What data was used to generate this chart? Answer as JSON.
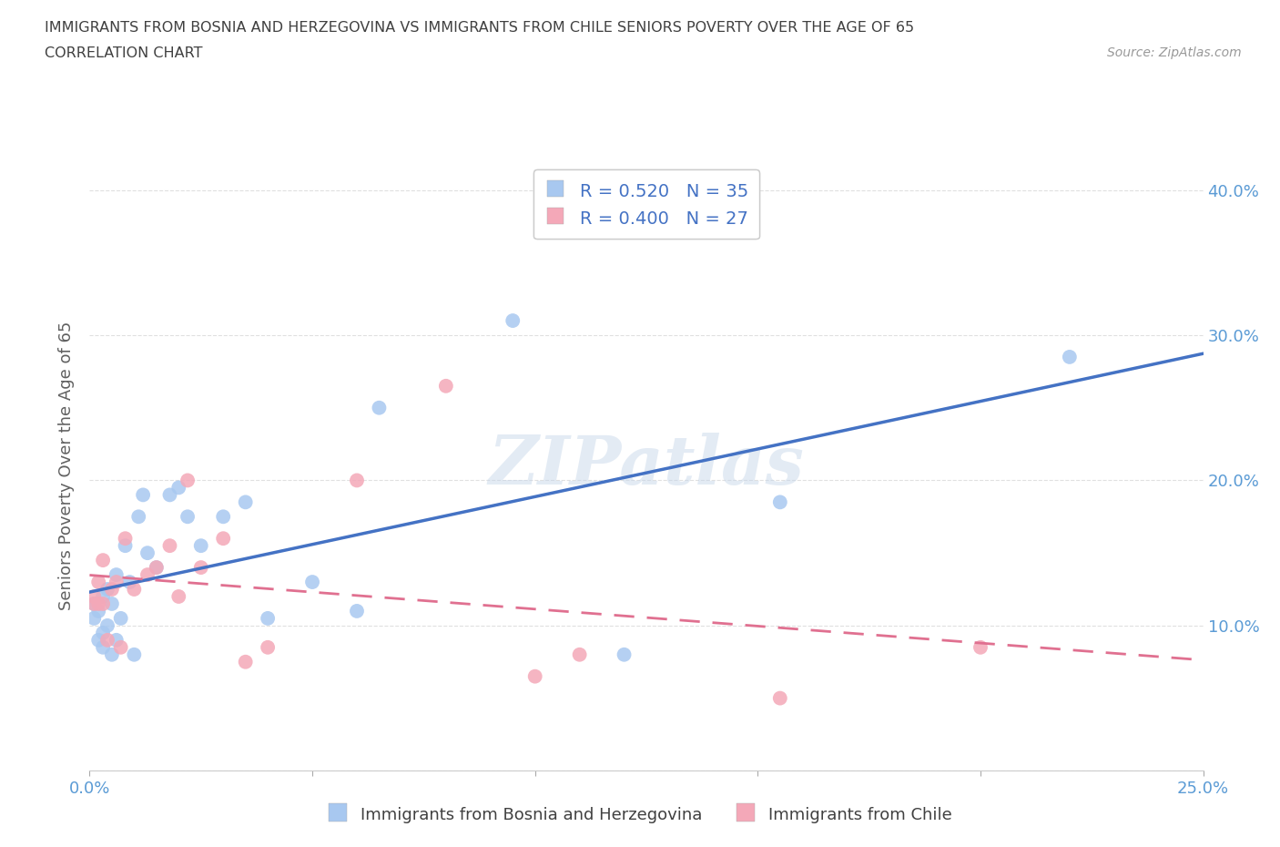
{
  "title_line1": "IMMIGRANTS FROM BOSNIA AND HERZEGOVINA VS IMMIGRANTS FROM CHILE SENIORS POVERTY OVER THE AGE OF 65",
  "title_line2": "CORRELATION CHART",
  "source_text": "Source: ZipAtlas.com",
  "ylabel": "Seniors Poverty Over the Age of 65",
  "xlim": [
    0.0,
    0.25
  ],
  "ylim": [
    0.0,
    0.42
  ],
  "bosnia_color": "#a8c8f0",
  "chile_color": "#f4a8b8",
  "bosnia_line_color": "#4472c4",
  "chile_line_color": "#e07090",
  "bosnia_R": 0.52,
  "bosnia_N": 35,
  "chile_R": 0.4,
  "chile_N": 27,
  "watermark": "ZIPatlas",
  "legend_label_bosnia": "Immigrants from Bosnia and Herzegovina",
  "legend_label_chile": "Immigrants from Chile",
  "bosnia_scatter_x": [
    0.001,
    0.001,
    0.002,
    0.002,
    0.003,
    0.003,
    0.003,
    0.004,
    0.004,
    0.005,
    0.005,
    0.006,
    0.006,
    0.007,
    0.008,
    0.009,
    0.01,
    0.011,
    0.012,
    0.013,
    0.015,
    0.018,
    0.02,
    0.022,
    0.025,
    0.03,
    0.035,
    0.04,
    0.05,
    0.06,
    0.065,
    0.095,
    0.12,
    0.155,
    0.22
  ],
  "bosnia_scatter_y": [
    0.115,
    0.105,
    0.11,
    0.09,
    0.085,
    0.12,
    0.095,
    0.125,
    0.1,
    0.115,
    0.08,
    0.09,
    0.135,
    0.105,
    0.155,
    0.13,
    0.08,
    0.175,
    0.19,
    0.15,
    0.14,
    0.19,
    0.195,
    0.175,
    0.155,
    0.175,
    0.185,
    0.105,
    0.13,
    0.11,
    0.25,
    0.31,
    0.08,
    0.185,
    0.285
  ],
  "chile_scatter_x": [
    0.001,
    0.001,
    0.002,
    0.002,
    0.003,
    0.003,
    0.004,
    0.005,
    0.006,
    0.007,
    0.008,
    0.01,
    0.013,
    0.015,
    0.018,
    0.02,
    0.022,
    0.025,
    0.03,
    0.035,
    0.04,
    0.06,
    0.08,
    0.1,
    0.11,
    0.155,
    0.2
  ],
  "chile_scatter_y": [
    0.12,
    0.115,
    0.13,
    0.115,
    0.145,
    0.115,
    0.09,
    0.125,
    0.13,
    0.085,
    0.16,
    0.125,
    0.135,
    0.14,
    0.155,
    0.12,
    0.2,
    0.14,
    0.16,
    0.075,
    0.085,
    0.2,
    0.265,
    0.065,
    0.08,
    0.05,
    0.085
  ],
  "grid_color": "#dddddd",
  "background_color": "#ffffff",
  "axis_color": "#5b9bd5",
  "title_color": "#404040",
  "ylabel_color": "#606060"
}
